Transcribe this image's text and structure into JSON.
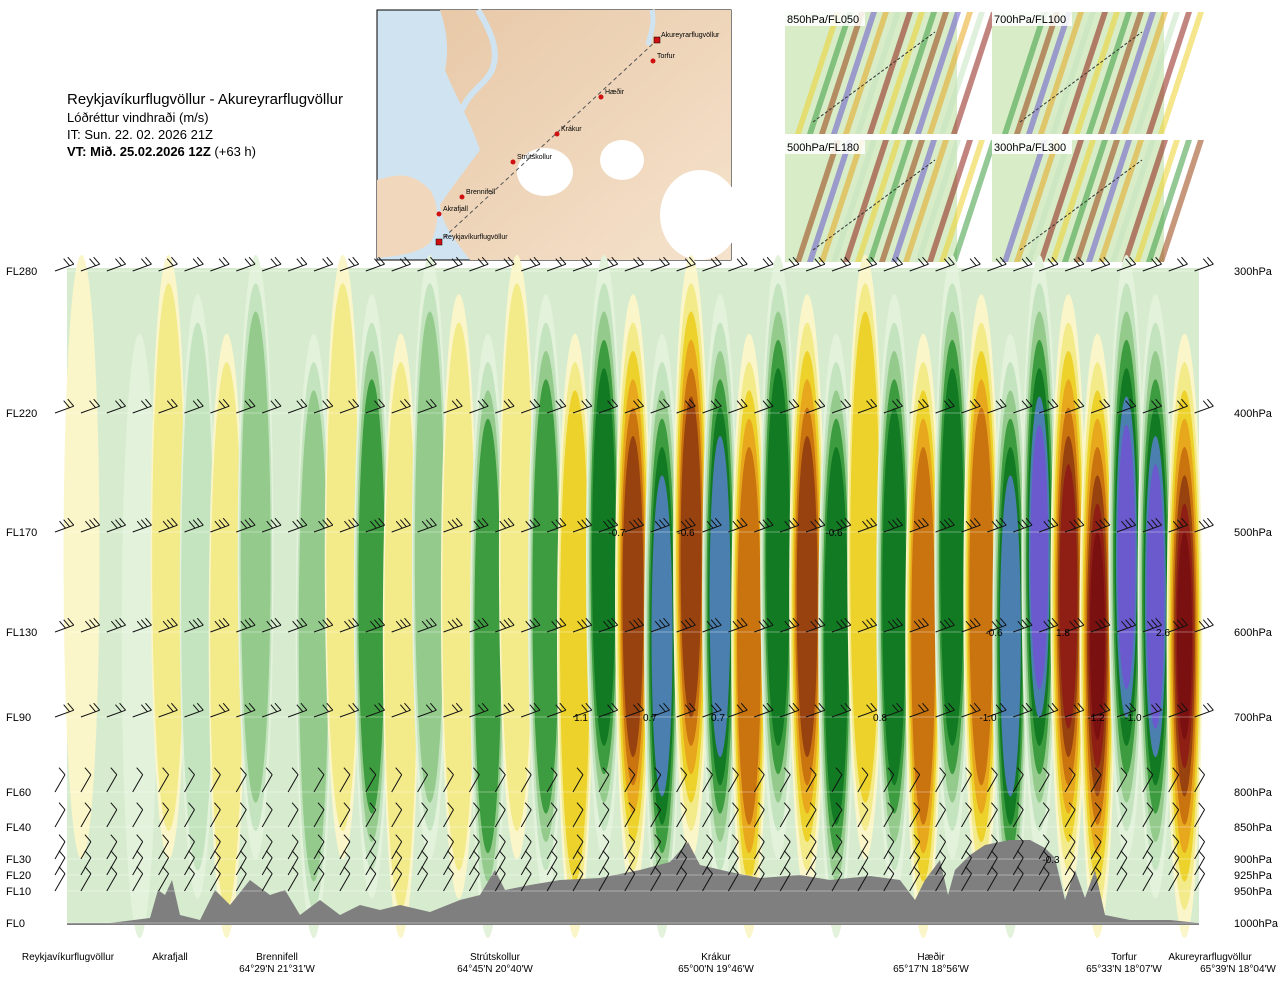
{
  "header": {
    "route": "Reykjavíkurflugvöllur - Akureyrarflugvöllur",
    "quantity": "Lóðréttur vindhraði (m/s)",
    "issue_time": "IT: Sun. 22. 02. 2026 21Z",
    "valid_time": "VT: Mið. 25.02.2026 12Z",
    "lead_time": "(+63 h)"
  },
  "map": {
    "labels": [
      "Akureyrarflugvöllur",
      "Torfur",
      "Hæðir",
      "Krákur",
      "Strútskollur",
      "Brennifell",
      "Akrafjall",
      "Reykjavíkurflugvöllur"
    ]
  },
  "thumbnails": [
    {
      "label": "850hPa/FL050"
    },
    {
      "label": "700hPa/FL100"
    },
    {
      "label": "500hPa/FL180"
    },
    {
      "label": "300hPa/FL300"
    }
  ],
  "colors": {
    "accent_route": "#d01010",
    "terrain": "#7f7f7f",
    "strong_down": "#6a5acd",
    "strong_up": "#8b1a1a"
  },
  "chart_data": {
    "type": "heatmap",
    "title": "Lóðréttur vindhraði (m/s)",
    "y_left_labels": [
      "FL280",
      "FL220",
      "FL170",
      "FL130",
      "FL90",
      "FL60",
      "FL40",
      "FL30",
      "FL20",
      "FL10",
      "FL0"
    ],
    "y_right_labels": [
      "300hPa",
      "400hPa",
      "500hPa",
      "600hPa",
      "700hPa",
      "800hPa",
      "850hPa",
      "900hPa",
      "925hPa",
      "950hPa",
      "1000hPa"
    ],
    "x_waypoints": [
      {
        "name": "Reykjavíkurflugvöllur",
        "coord": ""
      },
      {
        "name": "Akrafjall",
        "coord": ""
      },
      {
        "name": "Brennifell",
        "coord": "64°29'N 21°31'W"
      },
      {
        "name": "Strútskollur",
        "coord": "64°45'N 20°40'W"
      },
      {
        "name": "Krákur",
        "coord": "65°00'N 19°46'W"
      },
      {
        "name": "Hæðir",
        "coord": "65°17'N 18°56'W"
      },
      {
        "name": "Torfur",
        "coord": "65°33'N 18°07'W"
      },
      {
        "name": "Akureyrarflugvöllur",
        "coord": "65°39'N 18°04'W"
      }
    ],
    "value_labels": [
      {
        "text": "-0.7",
        "at_pressure": "500hPa"
      },
      {
        "text": "-0.6",
        "at_pressure": "500hPa"
      },
      {
        "text": "-0.6",
        "at_pressure": "500hPa"
      },
      {
        "text": "-0.6",
        "at_pressure": "600hPa"
      },
      {
        "text": "1.8",
        "at_pressure": "600hPa"
      },
      {
        "text": "2.6",
        "at_pressure": "600hPa"
      },
      {
        "text": "1.1",
        "at_pressure": "700hPa"
      },
      {
        "text": "0.7",
        "at_pressure": "700hPa"
      },
      {
        "text": "0.7",
        "at_pressure": "700hPa"
      },
      {
        "text": "0.8",
        "at_pressure": "700hPa"
      },
      {
        "text": "-1.0",
        "at_pressure": "700hPa"
      },
      {
        "text": "-1.2",
        "at_pressure": "700hPa"
      },
      {
        "text": "-1.0",
        "at_pressure": "700hPa"
      },
      {
        "text": "-0.3",
        "at_pressure": "900hPa"
      }
    ],
    "bands": [
      0.05,
      0.0,
      -0.05,
      0.1,
      -0.1,
      0.15,
      -0.2,
      0.0,
      -0.2,
      0.1,
      -0.35,
      0.15,
      -0.2,
      0.1,
      -0.4,
      0.15,
      -0.45,
      0.3,
      -0.55,
      0.7,
      -0.7,
      0.8,
      -0.75,
      0.55,
      -0.55,
      0.7,
      -0.6,
      0.3,
      -0.55,
      0.55,
      -0.65,
      0.5,
      -0.75,
      -0.95,
      0.9,
      1.6,
      -1.0,
      -0.9,
      2.6
    ]
  }
}
